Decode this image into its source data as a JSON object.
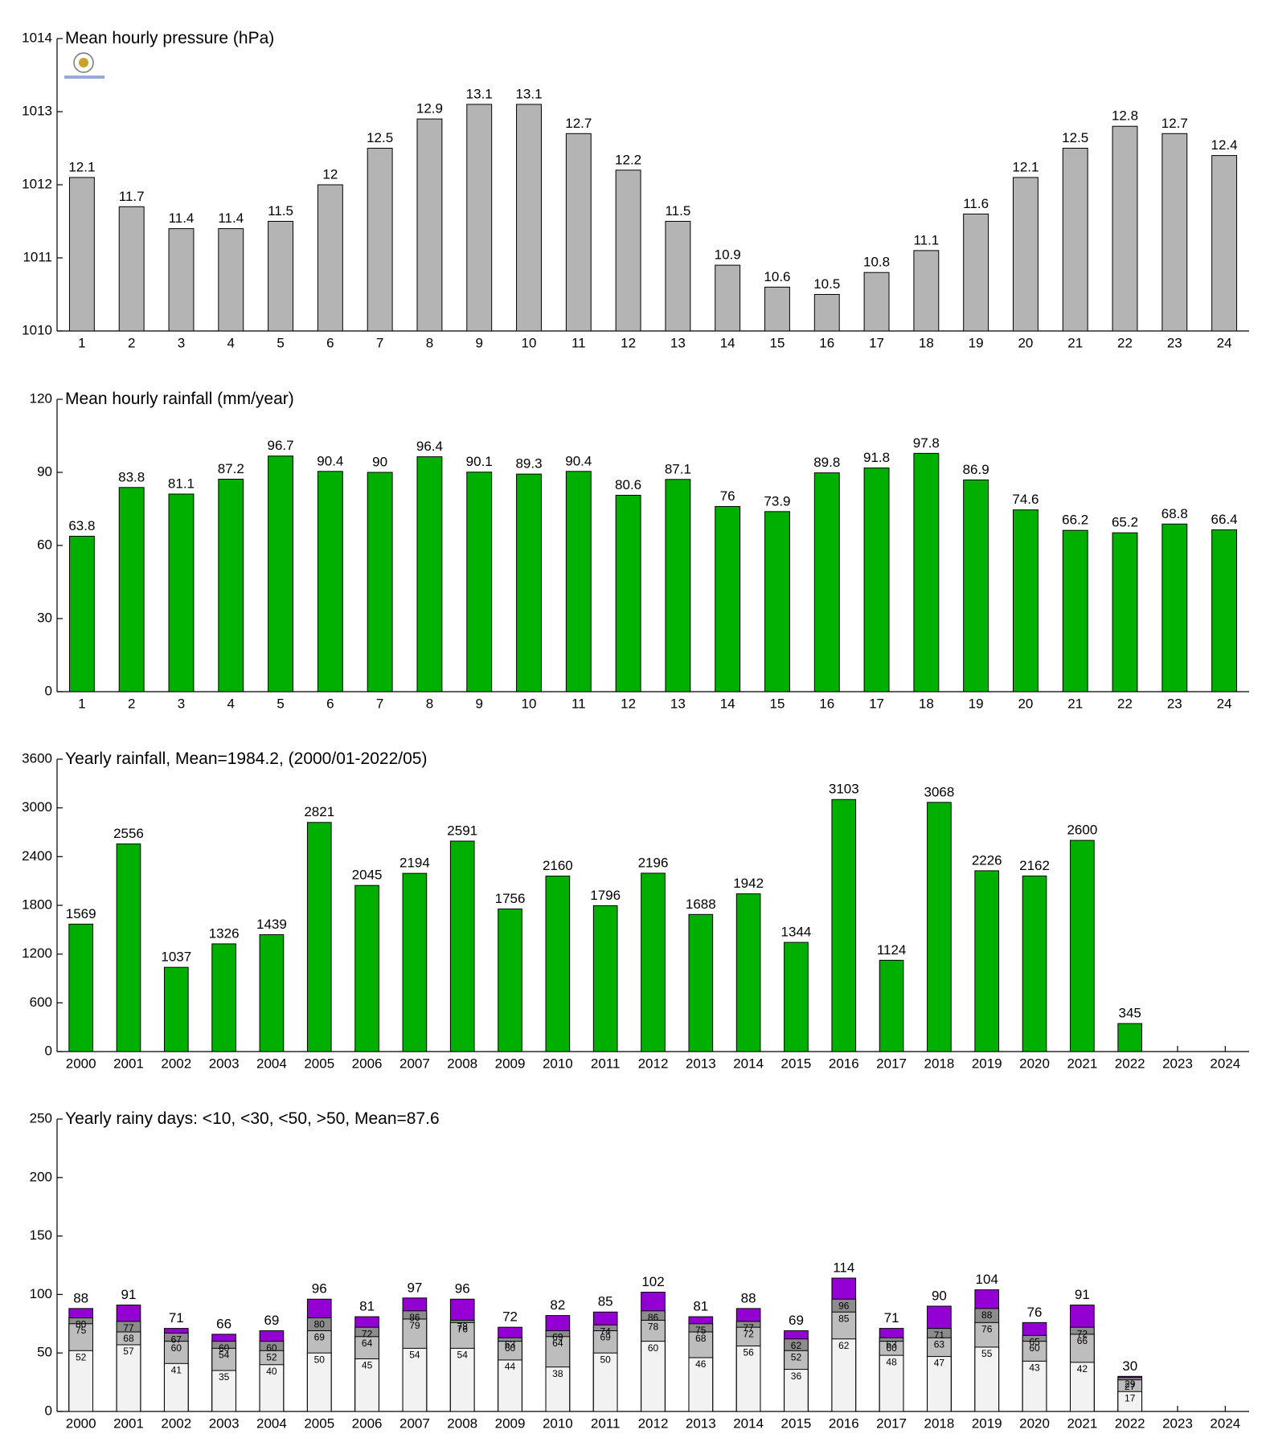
{
  "chart_data": [
    {
      "type": "bar",
      "title": "Mean hourly pressure (hPa)",
      "categories": [
        1,
        2,
        3,
        4,
        5,
        6,
        7,
        8,
        9,
        10,
        11,
        12,
        13,
        14,
        15,
        16,
        17,
        18,
        19,
        20,
        21,
        22,
        23,
        24
      ],
      "values": [
        1012.1,
        1011.7,
        1011.4,
        1011.4,
        1011.5,
        1012,
        1012.5,
        1012.9,
        1013.1,
        1013.1,
        1012.7,
        1012.2,
        1011.5,
        1010.9,
        1010.6,
        1010.5,
        1010.8,
        1011.1,
        1011.6,
        1012.1,
        1012.5,
        1012.8,
        1012.7,
        1012.4
      ],
      "value_labels": [
        "12.1",
        "11.7",
        "11.4",
        "11.4",
        "11.5",
        "12",
        "12.5",
        "12.9",
        "13.1",
        "13.1",
        "12.7",
        "12.2",
        "11.5",
        "10.9",
        "10.6",
        "10.5",
        "10.8",
        "11.1",
        "11.6",
        "12.1",
        "12.5",
        "12.8",
        "12.7",
        "12.4"
      ],
      "color": "#b4b4b4",
      "ylim": [
        1010,
        1014
      ],
      "yticks": [
        1010,
        1011,
        1012,
        1013,
        1014
      ]
    },
    {
      "type": "bar",
      "title": "Mean hourly rainfall (mm/year)",
      "categories": [
        1,
        2,
        3,
        4,
        5,
        6,
        7,
        8,
        9,
        10,
        11,
        12,
        13,
        14,
        15,
        16,
        17,
        18,
        19,
        20,
        21,
        22,
        23,
        24
      ],
      "values": [
        63.8,
        83.8,
        81.1,
        87.2,
        96.7,
        90.4,
        90,
        96.4,
        90.1,
        89.3,
        90.4,
        80.6,
        87.1,
        76,
        73.9,
        89.8,
        91.8,
        97.8,
        86.9,
        74.6,
        66.2,
        65.2,
        68.8,
        66.4
      ],
      "color": "#00b000",
      "ylim": [
        0,
        120
      ],
      "yticks": [
        0,
        30,
        60,
        90,
        120
      ]
    },
    {
      "type": "bar",
      "title": "Yearly rainfall, Mean=1984.2, (2000/01-2022/05)",
      "categories": [
        2000,
        2001,
        2002,
        2003,
        2004,
        2005,
        2006,
        2007,
        2008,
        2009,
        2010,
        2011,
        2012,
        2013,
        2014,
        2015,
        2016,
        2017,
        2018,
        2019,
        2020,
        2021,
        2022,
        2023,
        2024
      ],
      "values": [
        1569,
        2556,
        1037,
        1326,
        1439,
        2821,
        2045,
        2194,
        2591,
        1756,
        2160,
        1796,
        2196,
        1688,
        1942,
        1344,
        3103,
        1124,
        3068,
        2226,
        2162,
        2600,
        345,
        null,
        null
      ],
      "color": "#00b000",
      "ylim": [
        0,
        3600
      ],
      "yticks": [
        0,
        600,
        1200,
        1800,
        2400,
        3000,
        3600
      ]
    },
    {
      "type": "overlap",
      "title": "Yearly rainy days: <10, <30, <50, >50, Mean=87.6",
      "categories": [
        2000,
        2001,
        2002,
        2003,
        2004,
        2005,
        2006,
        2007,
        2008,
        2009,
        2010,
        2011,
        2012,
        2013,
        2014,
        2015,
        2016,
        2017,
        2018,
        2019,
        2020,
        2021,
        2022,
        2023,
        2024
      ],
      "series": [
        {
          "color": "#f2f2f2",
          "values": [
            52,
            57,
            41,
            35,
            40,
            50,
            45,
            54,
            54,
            44,
            38,
            50,
            60,
            46,
            56,
            36,
            62,
            48,
            47,
            55,
            43,
            42,
            17,
            null,
            null
          ]
        },
        {
          "color": "#bdbdbd",
          "values": [
            75,
            68,
            60,
            54,
            52,
            69,
            64,
            79,
            76,
            60,
            64,
            69,
            78,
            68,
            72,
            52,
            85,
            60,
            63,
            76,
            60,
            66,
            27,
            null,
            null
          ]
        },
        {
          "color": "#8c8c8c",
          "values": [
            80,
            77,
            67,
            60,
            60,
            80,
            72,
            86,
            78,
            63,
            69,
            74,
            86,
            75,
            77,
            62,
            96,
            63,
            71,
            88,
            65,
            72,
            29,
            null,
            null
          ]
        },
        {
          "color": "#9400d3",
          "values": [
            88,
            91,
            71,
            66,
            69,
            96,
            81,
            97,
            96,
            72,
            82,
            85,
            102,
            81,
            88,
            69,
            114,
            71,
            90,
            104,
            76,
            91,
            30,
            null,
            null
          ]
        }
      ],
      "ylim": [
        0,
        250
      ],
      "yticks": [
        0,
        50,
        100,
        150,
        200,
        250
      ]
    }
  ]
}
